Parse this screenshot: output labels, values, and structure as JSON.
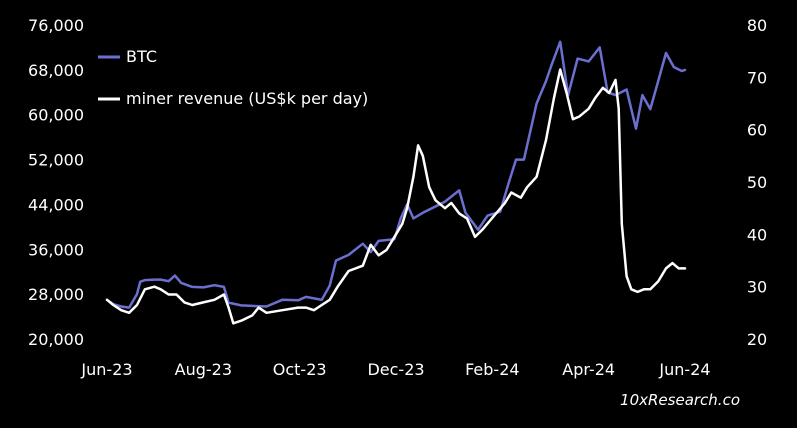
{
  "chart_data": {
    "type": "line",
    "x_ticks": [
      "Jun-23",
      "Aug-23",
      "Oct-23",
      "Dec-23",
      "Feb-24",
      "Apr-24",
      "Jun-24"
    ],
    "x_range": [
      "2023-06-01",
      "2024-06-01"
    ],
    "y_left": {
      "ticks": [
        "20,000",
        "28,000",
        "36,000",
        "44,000",
        "52,000",
        "60,000",
        "68,000",
        "76,000"
      ],
      "lim": [
        20000,
        76000
      ]
    },
    "y_right": {
      "ticks": [
        "20",
        "30",
        "40",
        "50",
        "60",
        "70",
        "80"
      ],
      "lim": [
        20,
        80
      ]
    },
    "legend": "top-left",
    "grid": false,
    "watermark": "10xResearch.co",
    "series": [
      {
        "name": "BTC",
        "axis": "left",
        "color": "#6b70d0",
        "points": [
          [
            "2023-06-01",
            27000
          ],
          [
            "2023-06-05",
            26200
          ],
          [
            "2023-06-10",
            25800
          ],
          [
            "2023-06-15",
            25600
          ],
          [
            "2023-06-20",
            28000
          ],
          [
            "2023-06-22",
            30200
          ],
          [
            "2023-06-25",
            30500
          ],
          [
            "2023-07-01",
            30600
          ],
          [
            "2023-07-05",
            30600
          ],
          [
            "2023-07-10",
            30300
          ],
          [
            "2023-07-14",
            31300
          ],
          [
            "2023-07-18",
            30000
          ],
          [
            "2023-07-25",
            29300
          ],
          [
            "2023-08-01",
            29200
          ],
          [
            "2023-08-08",
            29600
          ],
          [
            "2023-08-14",
            29300
          ],
          [
            "2023-08-17",
            26500
          ],
          [
            "2023-08-25",
            26000
          ],
          [
            "2023-09-01",
            25900
          ],
          [
            "2023-09-10",
            25800
          ],
          [
            "2023-09-20",
            27000
          ],
          [
            "2023-09-30",
            26900
          ],
          [
            "2023-10-05",
            27500
          ],
          [
            "2023-10-15",
            27000
          ],
          [
            "2023-10-20",
            29500
          ],
          [
            "2023-10-24",
            34000
          ],
          [
            "2023-11-01",
            35000
          ],
          [
            "2023-11-10",
            37000
          ],
          [
            "2023-11-15",
            35500
          ],
          [
            "2023-11-20",
            37500
          ],
          [
            "2023-11-30",
            37800
          ],
          [
            "2023-12-04",
            41500
          ],
          [
            "2023-12-08",
            44000
          ],
          [
            "2023-12-12",
            41500
          ],
          [
            "2023-12-18",
            42500
          ],
          [
            "2023-12-25",
            43500
          ],
          [
            "2024-01-01",
            44500
          ],
          [
            "2024-01-10",
            46500
          ],
          [
            "2024-01-14",
            42500
          ],
          [
            "2024-01-22",
            39500
          ],
          [
            "2024-01-28",
            42000
          ],
          [
            "2024-02-05",
            42700
          ],
          [
            "2024-02-10",
            47500
          ],
          [
            "2024-02-15",
            52000
          ],
          [
            "2024-02-20",
            52000
          ],
          [
            "2024-02-28",
            62000
          ],
          [
            "2024-03-05",
            66000
          ],
          [
            "2024-03-08",
            68500
          ],
          [
            "2024-03-14",
            73000
          ],
          [
            "2024-03-19",
            63500
          ],
          [
            "2024-03-25",
            70000
          ],
          [
            "2024-04-01",
            69500
          ],
          [
            "2024-04-08",
            72000
          ],
          [
            "2024-04-13",
            64000
          ],
          [
            "2024-04-18",
            63500
          ],
          [
            "2024-04-25",
            64500
          ],
          [
            "2024-05-01",
            57500
          ],
          [
            "2024-05-05",
            63500
          ],
          [
            "2024-05-10",
            61000
          ],
          [
            "2024-05-15",
            66000
          ],
          [
            "2024-05-20",
            71000
          ],
          [
            "2024-05-25",
            68500
          ],
          [
            "2024-05-30",
            67800
          ],
          [
            "2024-06-01",
            68000
          ]
        ]
      },
      {
        "name": "miner revenue (US$k per day)",
        "axis": "right",
        "color": "#ffffff",
        "points": [
          [
            "2023-06-01",
            27.5
          ],
          [
            "2023-06-05",
            26.5
          ],
          [
            "2023-06-10",
            25.5
          ],
          [
            "2023-06-15",
            25.0
          ],
          [
            "2023-06-20",
            26.5
          ],
          [
            "2023-06-25",
            29.5
          ],
          [
            "2023-07-01",
            30.0
          ],
          [
            "2023-07-05",
            29.5
          ],
          [
            "2023-07-10",
            28.5
          ],
          [
            "2023-07-15",
            28.5
          ],
          [
            "2023-07-20",
            27.0
          ],
          [
            "2023-07-25",
            26.5
          ],
          [
            "2023-08-01",
            27.0
          ],
          [
            "2023-08-08",
            27.5
          ],
          [
            "2023-08-14",
            28.5
          ],
          [
            "2023-08-17",
            26.0
          ],
          [
            "2023-08-20",
            23.0
          ],
          [
            "2023-08-25",
            23.5
          ],
          [
            "2023-09-01",
            24.5
          ],
          [
            "2023-09-05",
            26.0
          ],
          [
            "2023-09-10",
            25.0
          ],
          [
            "2023-09-20",
            25.5
          ],
          [
            "2023-09-30",
            26.0
          ],
          [
            "2023-10-05",
            26.0
          ],
          [
            "2023-10-10",
            25.5
          ],
          [
            "2023-10-15",
            26.5
          ],
          [
            "2023-10-20",
            27.5
          ],
          [
            "2023-10-25",
            30.0
          ],
          [
            "2023-11-01",
            33.0
          ],
          [
            "2023-11-10",
            34.0
          ],
          [
            "2023-11-15",
            38.0
          ],
          [
            "2023-11-20",
            36.0
          ],
          [
            "2023-11-25",
            37.0
          ],
          [
            "2023-12-01",
            40.0
          ],
          [
            "2023-12-05",
            42.0
          ],
          [
            "2023-12-08",
            45.0
          ],
          [
            "2023-12-12",
            51.0
          ],
          [
            "2023-12-15",
            57.0
          ],
          [
            "2023-12-18",
            55.0
          ],
          [
            "2023-12-22",
            49.0
          ],
          [
            "2023-12-26",
            46.5
          ],
          [
            "2024-01-01",
            45.0
          ],
          [
            "2024-01-05",
            46.0
          ],
          [
            "2024-01-10",
            44.0
          ],
          [
            "2024-01-15",
            43.0
          ],
          [
            "2024-01-20",
            39.5
          ],
          [
            "2024-01-25",
            41.0
          ],
          [
            "2024-02-01",
            43.5
          ],
          [
            "2024-02-08",
            46.0
          ],
          [
            "2024-02-12",
            48.0
          ],
          [
            "2024-02-18",
            47.0
          ],
          [
            "2024-02-22",
            49.0
          ],
          [
            "2024-02-28",
            51.0
          ],
          [
            "2024-03-05",
            58.0
          ],
          [
            "2024-03-10",
            66.0
          ],
          [
            "2024-03-14",
            71.5
          ],
          [
            "2024-03-18",
            67.0
          ],
          [
            "2024-03-22",
            62.0
          ],
          [
            "2024-03-26",
            62.5
          ],
          [
            "2024-04-01",
            64.0
          ],
          [
            "2024-04-05",
            66.0
          ],
          [
            "2024-04-10",
            68.0
          ],
          [
            "2024-04-14",
            67.0
          ],
          [
            "2024-04-18",
            69.5
          ],
          [
            "2024-04-20",
            64.0
          ],
          [
            "2024-04-22",
            42.0
          ],
          [
            "2024-04-25",
            32.0
          ],
          [
            "2024-04-28",
            29.5
          ],
          [
            "2024-05-02",
            29.0
          ],
          [
            "2024-05-06",
            29.5
          ],
          [
            "2024-05-10",
            29.5
          ],
          [
            "2024-05-15",
            31.0
          ],
          [
            "2024-05-20",
            33.5
          ],
          [
            "2024-05-24",
            34.5
          ],
          [
            "2024-05-28",
            33.5
          ],
          [
            "2024-06-01",
            33.5
          ]
        ]
      }
    ]
  }
}
